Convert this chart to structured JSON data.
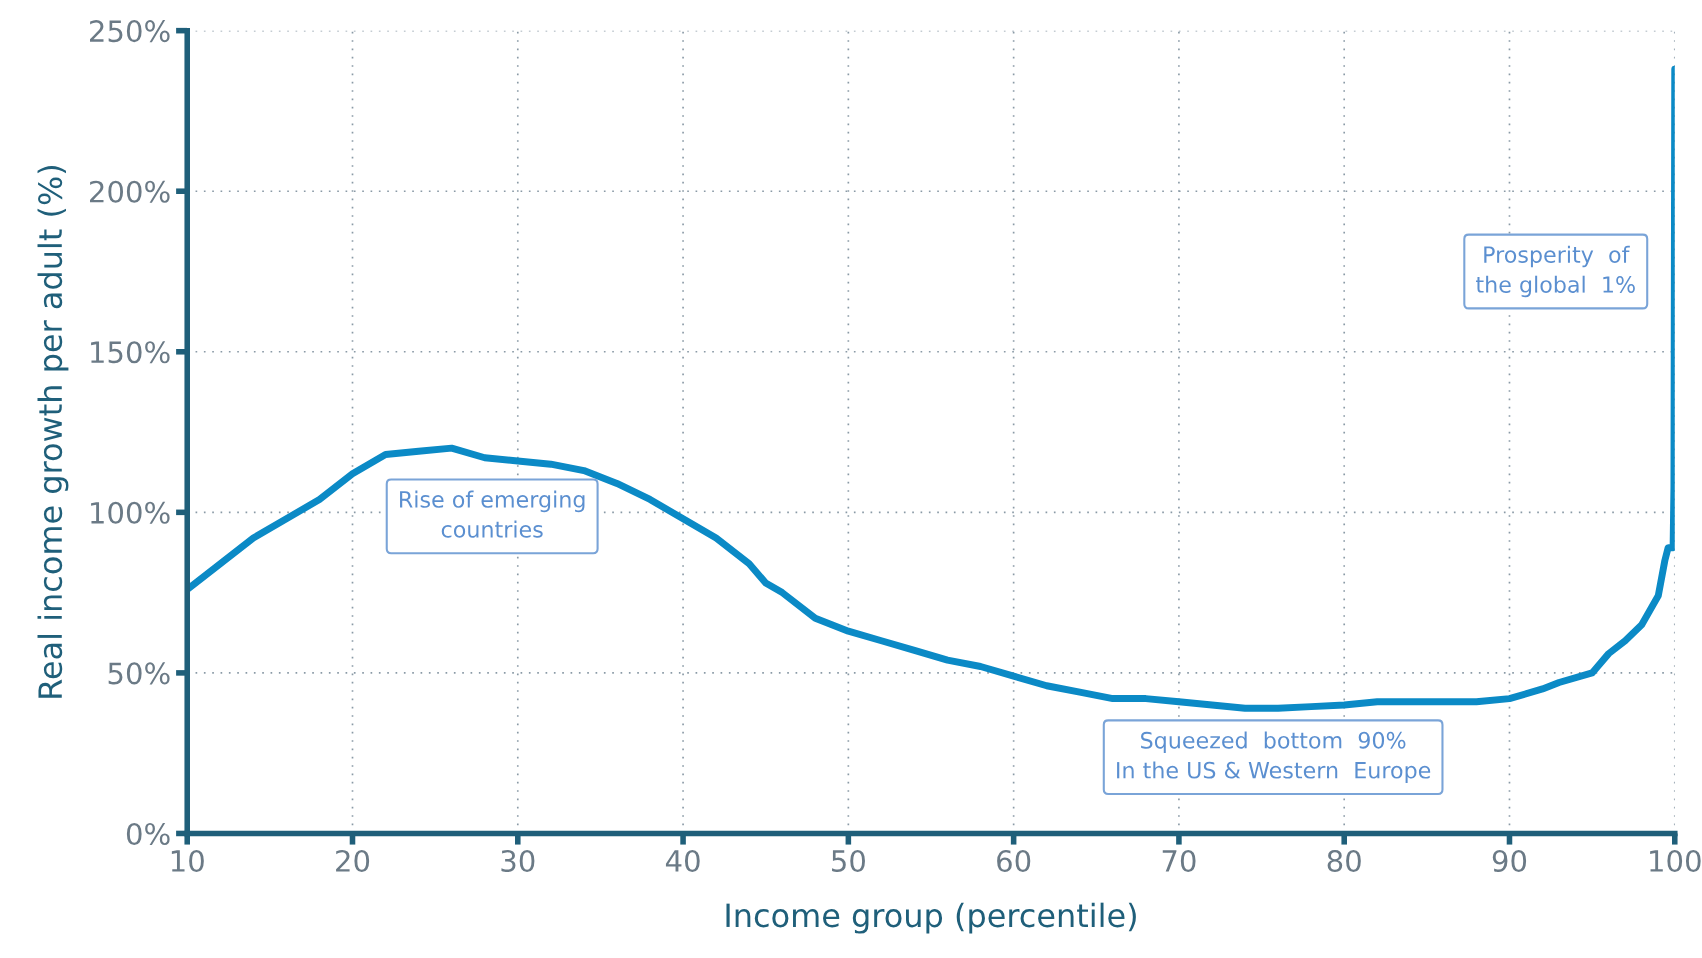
{
  "chart_data": {
    "type": "line",
    "xlabel": "Income group (percentile)",
    "ylabel": "Real income growth per adult (%)",
    "x": [
      10,
      12,
      14,
      16,
      18,
      20,
      22,
      24,
      26,
      28,
      30,
      32,
      34,
      36,
      38,
      40,
      42,
      44,
      45,
      46,
      48,
      50,
      52,
      54,
      56,
      58,
      60,
      62,
      64,
      66,
      68,
      70,
      72,
      74,
      76,
      78,
      80,
      82,
      84,
      86,
      88,
      90,
      92,
      93,
      95,
      96,
      97,
      98,
      99,
      99.4,
      99.6,
      99.9,
      99.95,
      100
    ],
    "series": [
      {
        "color": "#0b8ac6",
        "values": [
          76,
          84,
          92,
          98,
          104,
          112,
          118,
          119,
          120,
          117,
          116,
          115,
          113,
          109,
          104,
          98,
          92,
          84,
          78,
          75,
          67,
          63,
          60,
          57,
          54,
          52,
          49,
          46,
          44,
          42,
          42,
          41,
          40,
          39,
          39,
          39.5,
          40,
          41,
          41,
          41,
          41,
          42,
          45,
          47,
          50,
          56,
          60,
          65,
          74,
          85,
          89,
          89,
          108,
          238
        ]
      }
    ],
    "xlim": [
      10,
      100
    ],
    "xticks": [
      10,
      20,
      30,
      40,
      50,
      60,
      70,
      80,
      90,
      100
    ],
    "ylim": [
      0,
      250
    ],
    "yticks": [
      {
        "value": 0,
        "label": "0%"
      },
      {
        "value": 50,
        "label": "50%"
      },
      {
        "value": 100,
        "label": "100%"
      },
      {
        "value": 150,
        "label": "150%"
      },
      {
        "value": 200,
        "label": "200%"
      },
      {
        "value": 250,
        "label": "250%"
      }
    ],
    "grid": true,
    "marker": "none",
    "line_style": "solid",
    "legend": false,
    "annotations": [
      "Rise of emerging\ncountries",
      "Squeezed  bottom  90%\nIn the US & Western  Europe",
      "Prosperity  of\nthe global  1%"
    ]
  }
}
